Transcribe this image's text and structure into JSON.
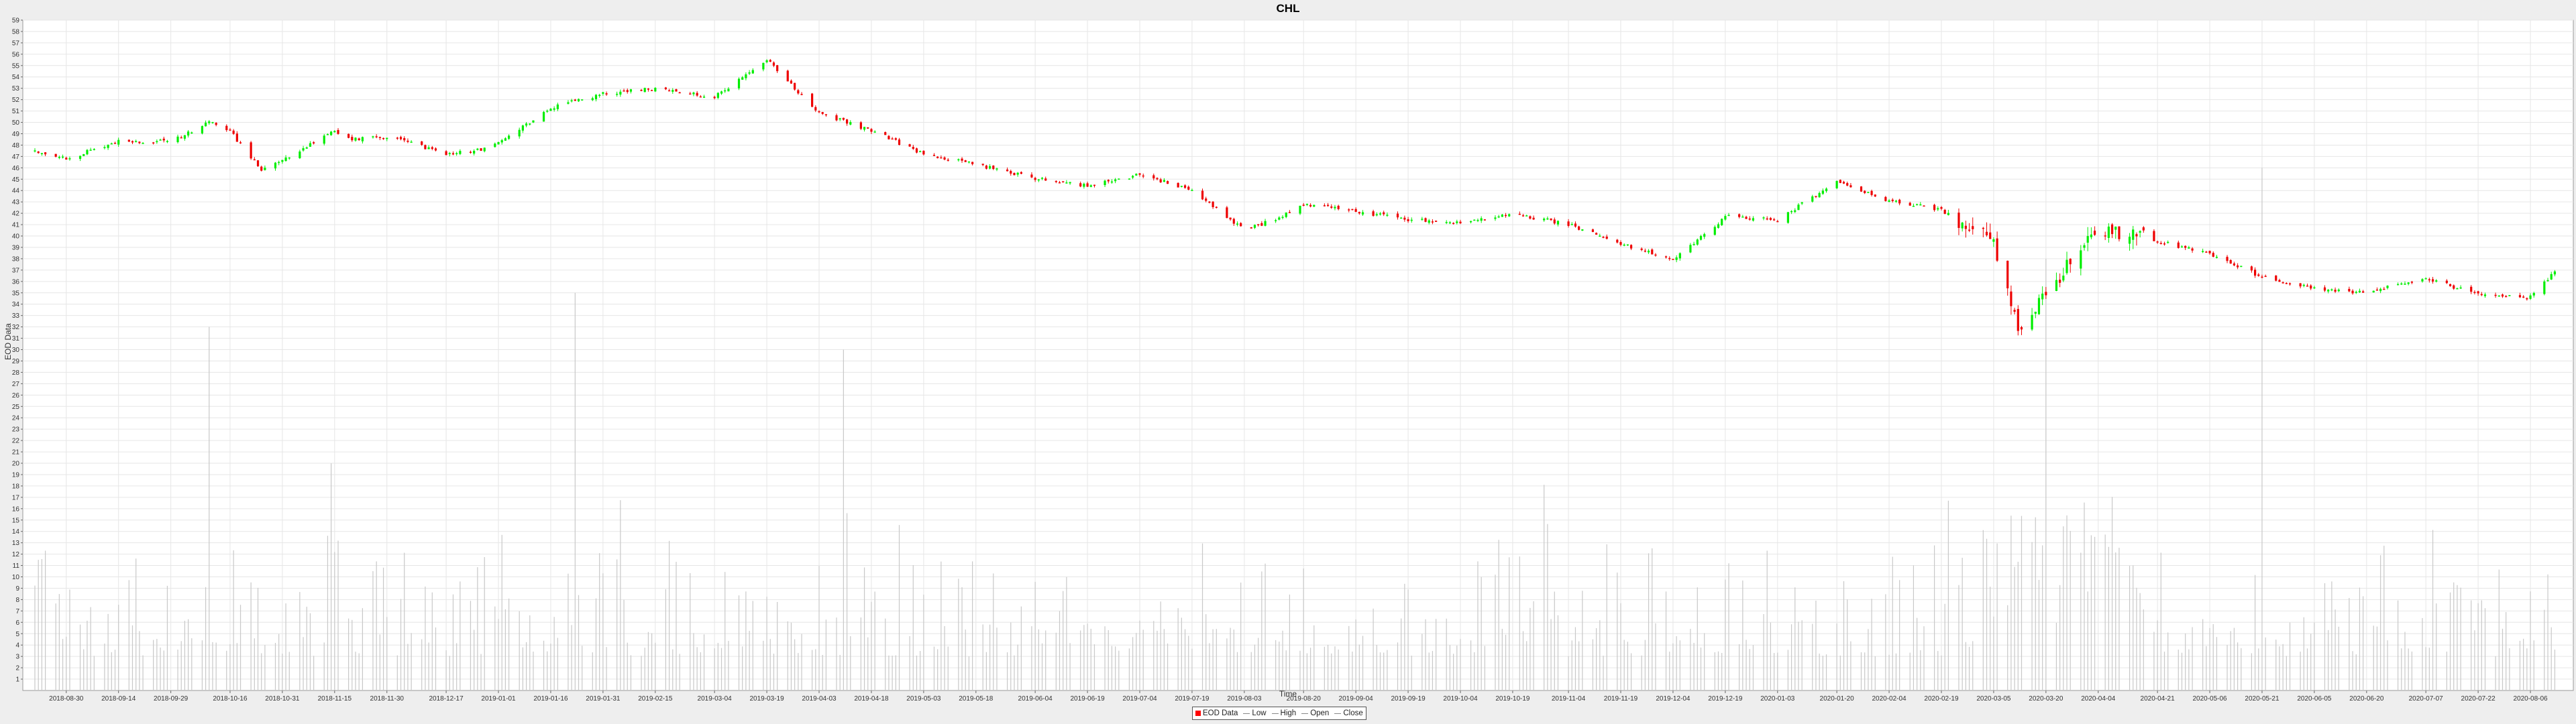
{
  "chart_data": {
    "type": "candlestick",
    "title": "CHL",
    "xlabel": "Time",
    "ylabel": "EOD Data",
    "ylim": [
      0,
      59
    ],
    "volume_scale_note": "volume bars plotted on same price axis",
    "grid": true,
    "legend_position": "bottom-center",
    "colors": {
      "up": "#00ee00",
      "down": "#ee0000",
      "volume": "#c8c8c8",
      "grid": "#e6e6e6",
      "plot_bg": "#ffffff"
    },
    "legend": [
      {
        "label": "EOD Data",
        "marker": "box",
        "color": "#ff0000"
      },
      {
        "label": "Low",
        "marker": "line",
        "color": "#888888"
      },
      {
        "label": "High",
        "marker": "line",
        "color": "#888888"
      },
      {
        "label": "Open",
        "marker": "line",
        "color": "#888888"
      },
      {
        "label": "Close",
        "marker": "line",
        "color": "#888888"
      }
    ],
    "x_tick_labels": [
      "2018-08-30",
      "2018-09-14",
      "2018-09-29",
      "2018-10-16",
      "2018-10-31",
      "2018-11-15",
      "2018-11-30",
      "2018-12-17",
      "2019-01-01",
      "2019-01-16",
      "2019-01-31",
      "2019-02-15",
      "2019-03-04",
      "2019-03-19",
      "2019-04-03",
      "2019-04-18",
      "2019-05-03",
      "2019-05-18",
      "2019-06-04",
      "2019-06-19",
      "2019-07-04",
      "2019-07-19",
      "2019-08-03",
      "2019-08-20",
      "2019-09-04",
      "2019-09-19",
      "2019-10-04",
      "2019-10-19",
      "2019-11-04",
      "2019-11-19",
      "2019-12-04",
      "2019-12-19",
      "2020-01-03",
      "2020-01-20",
      "2020-02-04",
      "2020-02-19",
      "2020-03-05",
      "2020-03-20",
      "2020-04-04",
      "2020-04-21",
      "2020-05-06",
      "2020-05-21",
      "2020-06-05",
      "2020-06-20",
      "2020-07-07",
      "2020-07-22",
      "2020-08-06"
    ],
    "y_ticks": [
      1,
      2,
      3,
      4,
      5,
      6,
      7,
      8,
      9,
      10,
      11,
      12,
      13,
      14,
      15,
      16,
      17,
      18,
      19,
      20,
      21,
      22,
      23,
      24,
      25,
      26,
      27,
      28,
      29,
      30,
      31,
      32,
      33,
      34,
      35,
      36,
      37,
      38,
      39,
      40,
      41,
      42,
      43,
      44,
      45,
      46,
      47,
      48,
      49,
      50,
      51,
      52,
      53,
      54,
      55,
      56,
      57,
      58,
      59
    ],
    "close_series_by_date": {
      "dates": [
        "2018-08-21",
        "2018-08-30",
        "2018-09-14",
        "2018-09-29",
        "2018-10-10",
        "2018-10-16",
        "2018-10-25",
        "2018-10-31",
        "2018-11-15",
        "2018-11-20",
        "2018-11-30",
        "2018-12-17",
        "2018-12-24",
        "2019-01-01",
        "2019-01-16",
        "2019-01-31",
        "2019-02-15",
        "2019-03-04",
        "2019-03-13",
        "2019-03-19",
        "2019-04-03",
        "2019-04-18",
        "2019-05-03",
        "2019-05-18",
        "2019-06-04",
        "2019-06-19",
        "2019-07-04",
        "2019-07-19",
        "2019-08-03",
        "2019-08-12",
        "2019-08-20",
        "2019-09-04",
        "2019-09-19",
        "2019-10-04",
        "2019-10-19",
        "2019-11-04",
        "2019-11-19",
        "2019-12-04",
        "2019-12-19",
        "2020-01-03",
        "2020-01-20",
        "2020-02-04",
        "2020-02-19",
        "2020-03-05",
        "2020-03-12",
        "2020-03-20",
        "2020-04-04",
        "2020-04-21",
        "2020-05-06",
        "2020-05-21",
        "2020-06-05",
        "2020-06-20",
        "2020-07-07",
        "2020-07-22",
        "2020-08-06",
        "2020-08-13"
      ],
      "close": [
        47.5,
        46.8,
        48.3,
        48.4,
        50.0,
        49.2,
        45.8,
        46.6,
        49.3,
        48.5,
        48.8,
        47.2,
        47.4,
        48.1,
        51.3,
        52.5,
        53.0,
        52.2,
        54.2,
        55.5,
        50.8,
        49.3,
        47.2,
        46.3,
        45.1,
        44.4,
        45.4,
        44.1,
        40.5,
        41.5,
        42.8,
        42.2,
        41.4,
        41.2,
        42.0,
        41.0,
        39.3,
        37.9,
        41.7,
        41.4,
        44.8,
        43.1,
        42.3,
        39.5,
        32.0,
        35.0,
        40.7,
        39.6,
        38.4,
        36.4,
        35.4,
        35.0,
        36.3,
        34.8,
        34.6,
        36.8
      ]
    },
    "volume_note": "grey volume bars range roughly 1–46 on price axis, with spikes near 2018-10-10 (32), 2019-01-23 (35), 2019-04-10 (30), 2020-03-20 (38), 2020-05-21 (46)"
  }
}
